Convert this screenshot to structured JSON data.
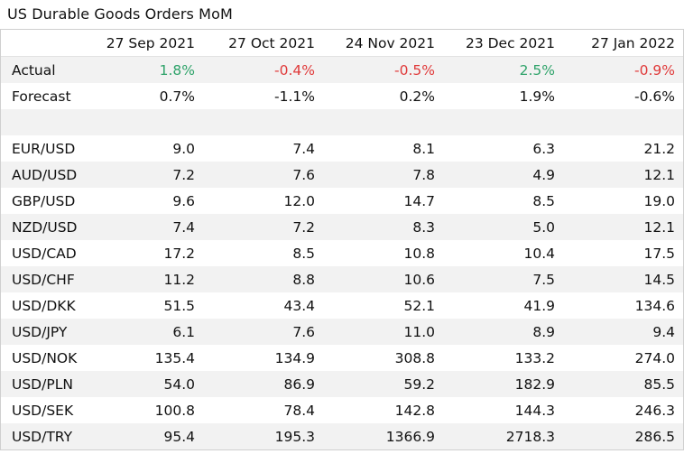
{
  "title": "US Durable Goods Orders MoM",
  "colors": {
    "positive": "#2fa36a",
    "negative": "#e03a3a",
    "shade": "#f2f2f2"
  },
  "chart_data": {
    "type": "table",
    "columns": [
      "27 Sep 2021",
      "27 Oct 2021",
      "24 Nov 2021",
      "23 Dec 2021",
      "27 Jan 2022"
    ],
    "summary_rows": [
      {
        "label": "Actual",
        "values": [
          "1.8%",
          "-0.4%",
          "-0.5%",
          "2.5%",
          "-0.9%"
        ],
        "signs": [
          "pos",
          "neg",
          "neg",
          "pos",
          "neg"
        ]
      },
      {
        "label": "Forecast",
        "values": [
          "0.7%",
          "-1.1%",
          "0.2%",
          "1.9%",
          "-0.6%"
        ]
      }
    ],
    "pair_rows": [
      {
        "label": "EUR/USD",
        "values": [
          "9.0",
          "7.4",
          "8.1",
          "6.3",
          "21.2"
        ]
      },
      {
        "label": "AUD/USD",
        "values": [
          "7.2",
          "7.6",
          "7.8",
          "4.9",
          "12.1"
        ]
      },
      {
        "label": "GBP/USD",
        "values": [
          "9.6",
          "12.0",
          "14.7",
          "8.5",
          "19.0"
        ]
      },
      {
        "label": "NZD/USD",
        "values": [
          "7.4",
          "7.2",
          "8.3",
          "5.0",
          "12.1"
        ]
      },
      {
        "label": "USD/CAD",
        "values": [
          "17.2",
          "8.5",
          "10.8",
          "10.4",
          "17.5"
        ]
      },
      {
        "label": "USD/CHF",
        "values": [
          "11.2",
          "8.8",
          "10.6",
          "7.5",
          "14.5"
        ]
      },
      {
        "label": "USD/DKK",
        "values": [
          "51.5",
          "43.4",
          "52.1",
          "41.9",
          "134.6"
        ]
      },
      {
        "label": "USD/JPY",
        "values": [
          "6.1",
          "7.6",
          "11.0",
          "8.9",
          "9.4"
        ]
      },
      {
        "label": "USD/NOK",
        "values": [
          "135.4",
          "134.9",
          "308.8",
          "133.2",
          "274.0"
        ]
      },
      {
        "label": "USD/PLN",
        "values": [
          "54.0",
          "86.9",
          "59.2",
          "182.9",
          "85.5"
        ]
      },
      {
        "label": "USD/SEK",
        "values": [
          "100.8",
          "78.4",
          "142.8",
          "144.3",
          "246.3"
        ]
      },
      {
        "label": "USD/TRY",
        "values": [
          "95.4",
          "195.3",
          "1366.9",
          "2718.3",
          "286.5"
        ]
      }
    ]
  }
}
